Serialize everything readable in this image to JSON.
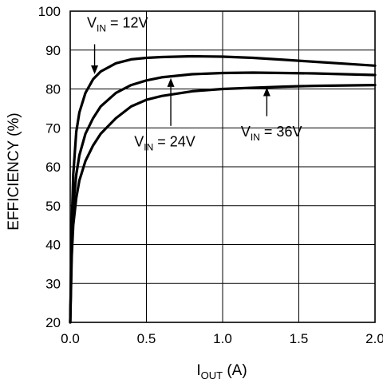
{
  "chart_data": {
    "type": "line",
    "xlabel": {
      "main": "I",
      "sub": "OUT",
      "rest": " (A)"
    },
    "ylabel": "EFFICIENCY (%)",
    "xlim": [
      0,
      2.0
    ],
    "ylim": [
      20,
      100
    ],
    "grid": true,
    "x_ticks": [
      "0.0",
      "0.5",
      "1.0",
      "1.5",
      "2.0"
    ],
    "y_ticks": [
      "20",
      "30",
      "40",
      "50",
      "60",
      "70",
      "80",
      "90",
      "100"
    ],
    "series": [
      {
        "name": {
          "main": "V",
          "sub": "IN",
          "rest": " = 12V"
        },
        "x": [
          0.0,
          0.01,
          0.02,
          0.04,
          0.06,
          0.1,
          0.15,
          0.2,
          0.3,
          0.4,
          0.5,
          0.6,
          0.8,
          1.0,
          1.2,
          1.4,
          1.6,
          1.8,
          2.0
        ],
        "y": [
          20,
          45,
          58,
          69,
          74,
          79,
          82.5,
          84.5,
          86.6,
          87.6,
          88.0,
          88.2,
          88.4,
          88.3,
          88.0,
          87.5,
          87.0,
          86.5,
          86.0
        ]
      },
      {
        "name": {
          "main": "V",
          "sub": "IN",
          "rest": " = 24V"
        },
        "x": [
          0.0,
          0.01,
          0.02,
          0.04,
          0.06,
          0.1,
          0.15,
          0.2,
          0.3,
          0.4,
          0.5,
          0.6,
          0.8,
          1.0,
          1.2,
          1.4,
          1.6,
          1.8,
          2.0
        ],
        "y": [
          20,
          40,
          50,
          58,
          63,
          68.5,
          72.5,
          75.5,
          79,
          81,
          82.2,
          83,
          83.8,
          84.1,
          84.2,
          84.1,
          84.0,
          83.8,
          83.6
        ]
      },
      {
        "name": {
          "main": "V",
          "sub": "IN",
          "rest": " = 36V"
        },
        "x": [
          0.0,
          0.01,
          0.02,
          0.04,
          0.06,
          0.1,
          0.15,
          0.2,
          0.3,
          0.4,
          0.5,
          0.6,
          0.8,
          1.0,
          1.2,
          1.4,
          1.6,
          1.8,
          2.0
        ],
        "y": [
          20,
          37,
          45,
          52,
          56.5,
          61.5,
          65.5,
          68.5,
          72.5,
          75.5,
          77.2,
          78.2,
          79.4,
          80.0,
          80.3,
          80.6,
          80.8,
          80.9,
          81.0
        ]
      }
    ],
    "annotations": [
      {
        "series": 0,
        "label_x": 0.11,
        "label_y": 95.8,
        "arrow_from": [
          0.16,
          91.5
        ],
        "arrow_to": [
          0.16,
          83.8
        ]
      },
      {
        "series": 1,
        "label_x": 0.42,
        "label_y": 65.2,
        "arrow_from": [
          0.66,
          70.5
        ],
        "arrow_to": [
          0.66,
          82.8
        ]
      },
      {
        "series": 2,
        "label_x": 1.12,
        "label_y": 67.8,
        "arrow_from": [
          1.29,
          73.0
        ],
        "arrow_to": [
          1.29,
          80.4
        ]
      }
    ]
  }
}
